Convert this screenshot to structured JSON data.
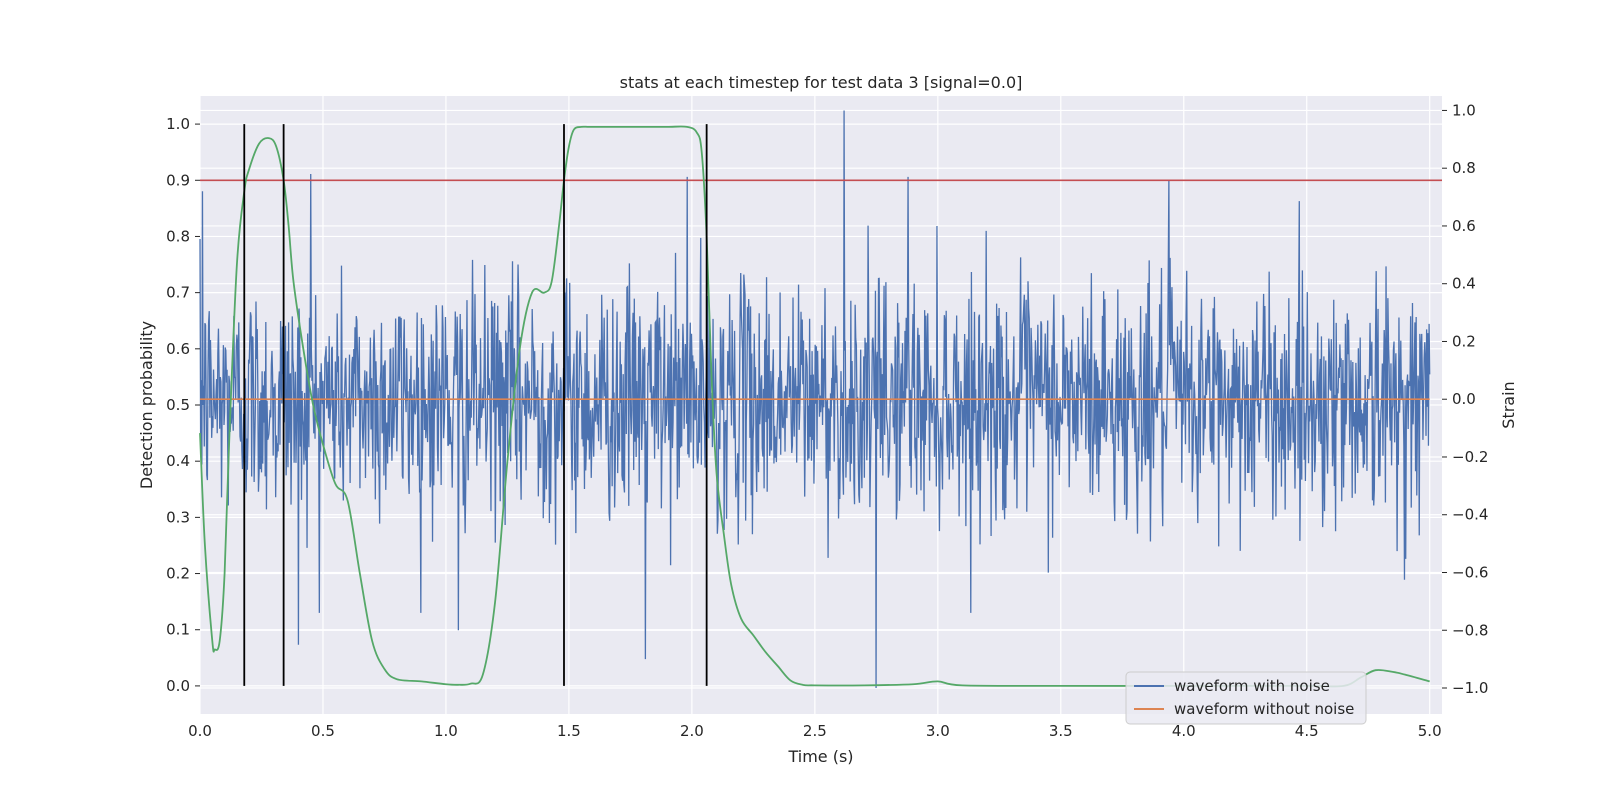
{
  "chart_data": {
    "type": "line",
    "title": "stats at each timestep for test data 3 [signal=0.0]",
    "xlabel": "Time (s)",
    "ylabel_left": "Detection probability",
    "ylabel_right": "Strain",
    "xlim": [
      0.0,
      5.05
    ],
    "ylim_left": [
      -0.05,
      1.05
    ],
    "ylim_right": [
      -1.09,
      1.05
    ],
    "x_ticks": [
      "0.0",
      "0.5",
      "1.0",
      "1.5",
      "2.0",
      "2.5",
      "3.0",
      "3.5",
      "4.0",
      "4.5",
      "5.0"
    ],
    "y_left_ticks": [
      "0.0",
      "0.1",
      "0.2",
      "0.3",
      "0.4",
      "0.5",
      "0.6",
      "0.7",
      "0.8",
      "0.9",
      "1.0"
    ],
    "y_right_ticks": [
      "−1.0",
      "−0.8",
      "−0.6",
      "−0.4",
      "−0.2",
      "0.0",
      "0.2",
      "0.4",
      "0.6",
      "0.8",
      "1.0"
    ],
    "grid": true,
    "legend_position": "lower-right",
    "series": [
      {
        "name": "waveform with noise",
        "axis": "right",
        "color": "#4c72b0",
        "description": "dense noisy strain trace between about -0.7 and 0.8, peaks near 1.0 at t=2.62 and dips to -1.0 near t=2.75",
        "noise_std": 0.2,
        "samples": 2000,
        "spikes": [
          {
            "x": 2.62,
            "y": 1.0
          },
          {
            "x": 2.75,
            "y": -1.0
          },
          {
            "x": 0.45,
            "y": 0.78
          },
          {
            "x": 1.98,
            "y": 0.77
          },
          {
            "x": 2.88,
            "y": 0.77
          },
          {
            "x": 3.94,
            "y": 0.76
          },
          {
            "x": 0.01,
            "y": 0.72
          },
          {
            "x": 0.4,
            "y": -0.85
          },
          {
            "x": 1.05,
            "y": -0.8
          },
          {
            "x": 1.81,
            "y": -0.9
          }
        ]
      },
      {
        "name": "waveform without noise",
        "axis": "right",
        "color": "#dd8452",
        "x": [
          0.0,
          5.0
        ],
        "y": [
          0.0,
          0.0
        ]
      },
      {
        "name": "",
        "axis": "left",
        "color": "#55a868",
        "x": [
          0.0,
          0.02,
          0.05,
          0.06,
          0.08,
          0.1,
          0.12,
          0.15,
          0.18,
          0.2,
          0.24,
          0.28,
          0.31,
          0.34,
          0.36,
          0.38,
          0.42,
          0.46,
          0.5,
          0.55,
          0.6,
          0.65,
          0.7,
          0.75,
          0.8,
          0.9,
          1.0,
          1.05,
          1.1,
          1.15,
          1.2,
          1.25,
          1.3,
          1.35,
          1.4,
          1.43,
          1.46,
          1.48,
          1.5,
          1.52,
          1.55,
          1.58,
          1.62,
          1.7,
          1.8,
          1.9,
          1.98,
          2.02,
          2.04,
          2.06,
          2.08,
          2.1,
          2.13,
          2.16,
          2.2,
          2.25,
          2.3,
          2.35,
          2.4,
          2.45,
          2.5,
          2.7,
          2.9,
          3.0,
          3.1,
          3.5,
          4.0,
          4.5,
          4.65,
          4.72,
          4.78,
          4.85,
          4.9,
          5.0
        ],
        "y": [
          0.45,
          0.25,
          0.08,
          0.065,
          0.08,
          0.2,
          0.45,
          0.75,
          0.88,
          0.92,
          0.965,
          0.975,
          0.96,
          0.9,
          0.82,
          0.72,
          0.6,
          0.5,
          0.43,
          0.36,
          0.33,
          0.2,
          0.08,
          0.03,
          0.012,
          0.008,
          0.003,
          0.002,
          0.004,
          0.02,
          0.15,
          0.4,
          0.6,
          0.7,
          0.7,
          0.72,
          0.82,
          0.9,
          0.96,
          0.99,
          0.995,
          0.995,
          0.995,
          0.995,
          0.995,
          0.995,
          0.995,
          0.985,
          0.95,
          0.8,
          0.55,
          0.38,
          0.27,
          0.18,
          0.12,
          0.09,
          0.06,
          0.035,
          0.01,
          0.002,
          0.001,
          0.001,
          0.003,
          0.008,
          0.001,
          0.0,
          0.0,
          0.0,
          0.0,
          0.015,
          0.028,
          0.025,
          0.02,
          0.008
        ]
      }
    ],
    "threshold_line": {
      "axis": "left",
      "y": 0.9,
      "color": "#c44e52"
    },
    "event_lines": {
      "color": "#000000",
      "x": [
        0.18,
        0.34,
        1.48,
        2.06
      ],
      "y_range": [
        0.0,
        1.0
      ]
    }
  }
}
